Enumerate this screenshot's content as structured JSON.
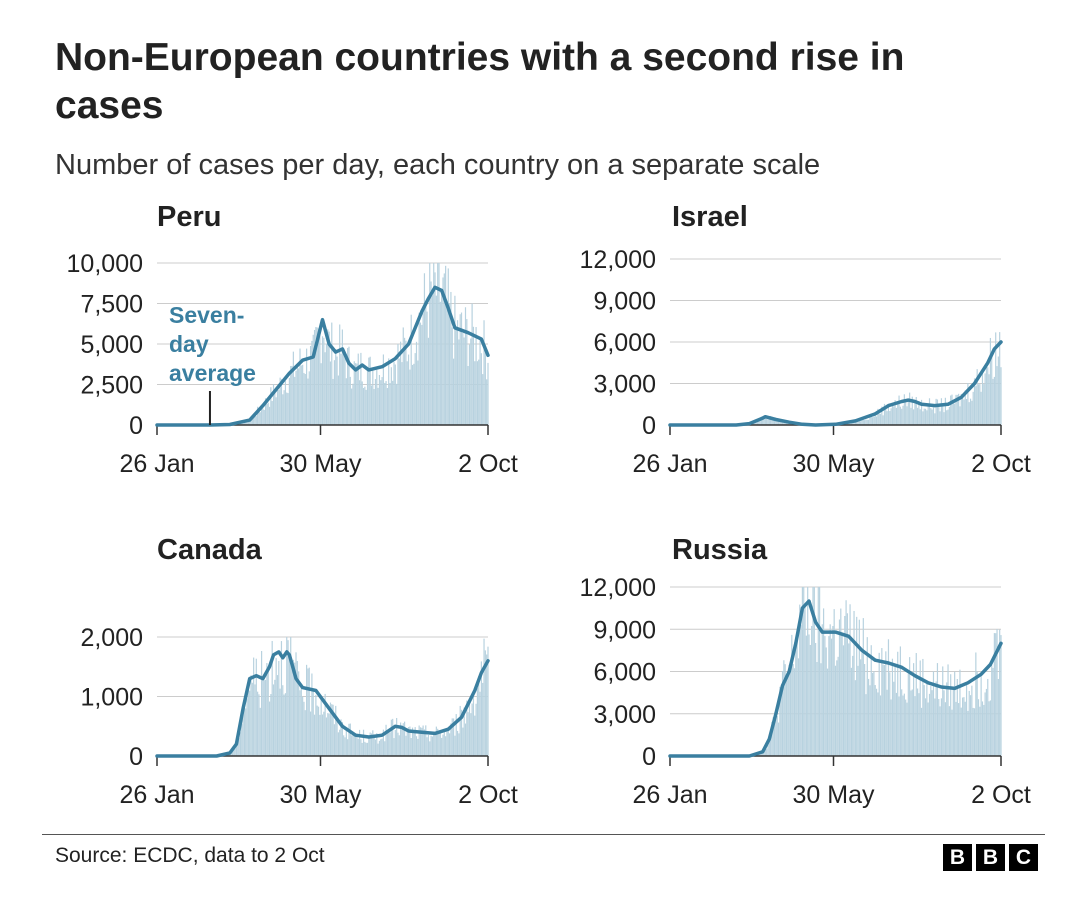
{
  "header": {
    "title": "Non-European countries with a second rise in cases",
    "subtitle": "Number of cases per day, each country on a separate scale"
  },
  "colors": {
    "line": "#3a7fa0",
    "bars": "#b8d2df",
    "grid": "#cccccc",
    "axis": "#333333",
    "text": "#222222"
  },
  "footer": {
    "source": "Source: ECDC, data to 2 Oct",
    "logo_letters": [
      "B",
      "B",
      "C"
    ]
  },
  "chart_data": [
    {
      "type": "bar+line",
      "title": "Peru",
      "x_tick_labels": [
        "26 Jan",
        "30 May",
        "2 Oct"
      ],
      "x_range_days": [
        0,
        250
      ],
      "ylim": [
        0,
        10000
      ],
      "y_ticks": [
        0,
        2500,
        5000,
        7500,
        10000
      ],
      "y_tick_labels": [
        "0",
        "2,500",
        "5,000",
        "7,500",
        "10,000"
      ],
      "annotation": {
        "lines": [
          "Seven-",
          "day",
          "average"
        ],
        "day": 40
      },
      "seven_day_average": [
        [
          0,
          0
        ],
        [
          40,
          0
        ],
        [
          55,
          30
        ],
        [
          70,
          300
        ],
        [
          80,
          1200
        ],
        [
          90,
          2200
        ],
        [
          100,
          3200
        ],
        [
          110,
          4000
        ],
        [
          118,
          4200
        ],
        [
          125,
          6500
        ],
        [
          130,
          5000
        ],
        [
          135,
          4500
        ],
        [
          140,
          4700
        ],
        [
          145,
          3800
        ],
        [
          150,
          3400
        ],
        [
          155,
          3700
        ],
        [
          160,
          3400
        ],
        [
          170,
          3600
        ],
        [
          180,
          4100
        ],
        [
          190,
          5000
        ],
        [
          200,
          7000
        ],
        [
          205,
          7800
        ],
        [
          210,
          8500
        ],
        [
          215,
          8300
        ],
        [
          220,
          7200
        ],
        [
          225,
          6000
        ],
        [
          235,
          5700
        ],
        [
          245,
          5300
        ],
        [
          250,
          4300
        ]
      ]
    },
    {
      "type": "bar+line",
      "title": "Israel",
      "x_tick_labels": [
        "26 Jan",
        "30 May",
        "2 Oct"
      ],
      "x_range_days": [
        0,
        250
      ],
      "ylim": [
        0,
        12000
      ],
      "y_ticks": [
        0,
        3000,
        6000,
        9000,
        12000
      ],
      "y_tick_labels": [
        "0",
        "3,000",
        "6,000",
        "9,000",
        "12,000"
      ],
      "seven_day_average": [
        [
          0,
          0
        ],
        [
          50,
          0
        ],
        [
          60,
          100
        ],
        [
          70,
          500
        ],
        [
          72,
          600
        ],
        [
          80,
          400
        ],
        [
          90,
          200
        ],
        [
          100,
          50
        ],
        [
          110,
          0
        ],
        [
          125,
          50
        ],
        [
          140,
          300
        ],
        [
          155,
          800
        ],
        [
          165,
          1400
        ],
        [
          175,
          1700
        ],
        [
          180,
          1800
        ],
        [
          185,
          1700
        ],
        [
          190,
          1500
        ],
        [
          200,
          1400
        ],
        [
          210,
          1500
        ],
        [
          220,
          2000
        ],
        [
          230,
          3000
        ],
        [
          240,
          4500
        ],
        [
          245,
          5500
        ],
        [
          250,
          6000
        ]
      ]
    },
    {
      "type": "bar+line",
      "title": "Canada",
      "x_tick_labels": [
        "26 Jan",
        "30 May",
        "2 Oct"
      ],
      "x_range_days": [
        0,
        250
      ],
      "ylim": [
        0,
        2000
      ],
      "y_ticks": [
        0,
        1000,
        2000
      ],
      "y_tick_labels": [
        "0",
        "1,000",
        "2,000"
      ],
      "seven_day_average": [
        [
          0,
          0
        ],
        [
          45,
          0
        ],
        [
          55,
          50
        ],
        [
          60,
          200
        ],
        [
          65,
          800
        ],
        [
          70,
          1300
        ],
        [
          75,
          1350
        ],
        [
          80,
          1300
        ],
        [
          85,
          1500
        ],
        [
          88,
          1700
        ],
        [
          92,
          1750
        ],
        [
          95,
          1650
        ],
        [
          98,
          1750
        ],
        [
          100,
          1700
        ],
        [
          105,
          1300
        ],
        [
          110,
          1150
        ],
        [
          120,
          1100
        ],
        [
          130,
          800
        ],
        [
          140,
          500
        ],
        [
          150,
          350
        ],
        [
          160,
          320
        ],
        [
          170,
          350
        ],
        [
          180,
          500
        ],
        [
          185,
          480
        ],
        [
          190,
          420
        ],
        [
          200,
          400
        ],
        [
          210,
          380
        ],
        [
          220,
          450
        ],
        [
          230,
          650
        ],
        [
          240,
          1100
        ],
        [
          245,
          1400
        ],
        [
          250,
          1600
        ]
      ]
    },
    {
      "type": "bar+line",
      "title": "Russia",
      "x_tick_labels": [
        "26 Jan",
        "30 May",
        "2 Oct"
      ],
      "x_range_days": [
        0,
        250
      ],
      "ylim": [
        0,
        12000
      ],
      "y_ticks": [
        0,
        3000,
        6000,
        9000,
        12000
      ],
      "y_tick_labels": [
        "0",
        "3,000",
        "6,000",
        "9,000",
        "12,000"
      ],
      "seven_day_average": [
        [
          0,
          0
        ],
        [
          60,
          0
        ],
        [
          70,
          300
        ],
        [
          75,
          1200
        ],
        [
          80,
          3000
        ],
        [
          85,
          5000
        ],
        [
          90,
          6000
        ],
        [
          95,
          8000
        ],
        [
          100,
          10500
        ],
        [
          105,
          11000
        ],
        [
          110,
          9500
        ],
        [
          115,
          8800
        ],
        [
          125,
          8800
        ],
        [
          135,
          8500
        ],
        [
          145,
          7500
        ],
        [
          155,
          6800
        ],
        [
          165,
          6600
        ],
        [
          175,
          6300
        ],
        [
          185,
          5700
        ],
        [
          195,
          5200
        ],
        [
          205,
          4900
        ],
        [
          215,
          4800
        ],
        [
          225,
          5200
        ],
        [
          235,
          5800
        ],
        [
          242,
          6500
        ],
        [
          250,
          8000
        ]
      ]
    }
  ]
}
